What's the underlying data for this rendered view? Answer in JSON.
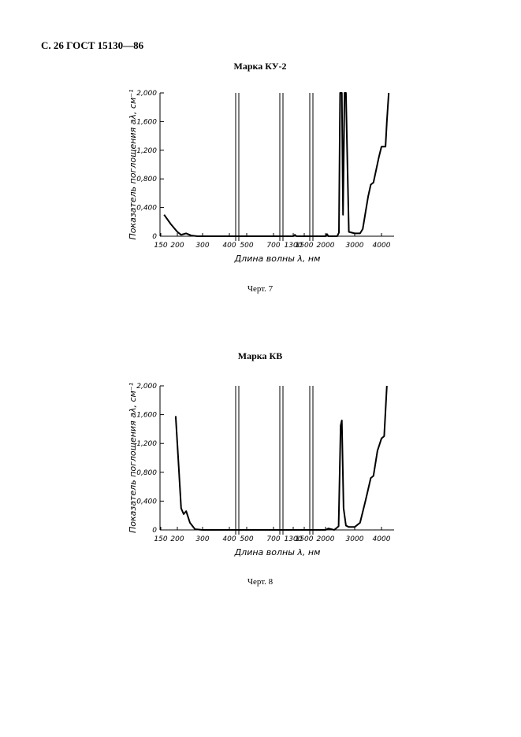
{
  "header": {
    "title": "С. 26 ГОСТ 15130—86"
  },
  "chart_data": [
    {
      "type": "line",
      "title": "Марка КУ-2",
      "caption": "Черт. 7",
      "xlabel": "Длина волны λ, нм",
      "ylabel": "Показатель поглощения aλ, см⁻¹",
      "xticks": [
        150,
        200,
        300,
        400,
        500,
        700,
        1300,
        1500,
        2000,
        3000,
        4000
      ],
      "ylim": [
        0,
        2
      ],
      "yticks": [
        0,
        {
          "value": 0.4,
          "label": "0,400"
        },
        {
          "value": 0.8,
          "label": "0,800"
        },
        {
          "value": 1.2,
          "label": "1,200"
        },
        {
          "value": 1.6,
          "label": "1,600"
        },
        {
          "value": 2,
          "label": "2,000"
        }
      ],
      "series": [
        {
          "color": "#000000",
          "x": [
            160,
            180,
            200,
            215,
            235,
            255,
            280,
            400,
            500,
            700,
            1300,
            1330,
            1360,
            1500,
            2000,
            2050,
            2100,
            2400,
            2460,
            2500,
            2560,
            2600,
            2650,
            2700,
            2800,
            3000,
            3200,
            3300,
            3500,
            3600,
            3700,
            3900,
            4000,
            4150,
            4200,
            4270
          ],
          "values": [
            0.3,
            0.17,
            0.06,
            0.02,
            0.04,
            0.01,
            0,
            0,
            0,
            0,
            0,
            0.02,
            0,
            0,
            0,
            0.03,
            0,
            0,
            0.05,
            2,
            2,
            0.3,
            2,
            2,
            0.06,
            0.04,
            0.04,
            0.1,
            0.55,
            0.72,
            0.75,
            1.1,
            1.25,
            1.25,
            1.6,
            2
          ]
        }
      ]
    },
    {
      "type": "line",
      "title": "Марка КВ",
      "caption": "Черт. 8",
      "xlabel": "Длина волны λ, нм",
      "ylabel": "Показатель поглощения aλ, см⁻¹",
      "xticks": [
        150,
        200,
        300,
        400,
        500,
        700,
        1300,
        1500,
        2000,
        3000,
        4000
      ],
      "ylim": [
        0,
        2
      ],
      "yticks": [
        0,
        {
          "value": 0.4,
          "label": "0,400"
        },
        {
          "value": 0.8,
          "label": "0,800"
        },
        {
          "value": 1.2,
          "label": "1,200"
        },
        {
          "value": 1.6,
          "label": "1,600"
        },
        {
          "value": 2,
          "label": "2,000"
        }
      ],
      "series": [
        {
          "color": "#000000",
          "x": [
            195,
            205,
            215,
            225,
            235,
            250,
            270,
            300,
            400,
            500,
            700,
            1300,
            1500,
            2000,
            2100,
            2300,
            2450,
            2520,
            2560,
            2620,
            2700,
            2800,
            3000,
            3200,
            3400,
            3600,
            3700,
            3850,
            4000,
            4100,
            4200
          ],
          "values": [
            1.58,
            0.9,
            0.3,
            0.22,
            0.26,
            0.1,
            0.01,
            0,
            0,
            0,
            0,
            0,
            0,
            0,
            0.02,
            0,
            0.05,
            1.45,
            1.52,
            0.3,
            0.06,
            0.04,
            0.04,
            0.1,
            0.4,
            0.72,
            0.75,
            1.1,
            1.27,
            1.3,
            2
          ]
        }
      ]
    }
  ]
}
